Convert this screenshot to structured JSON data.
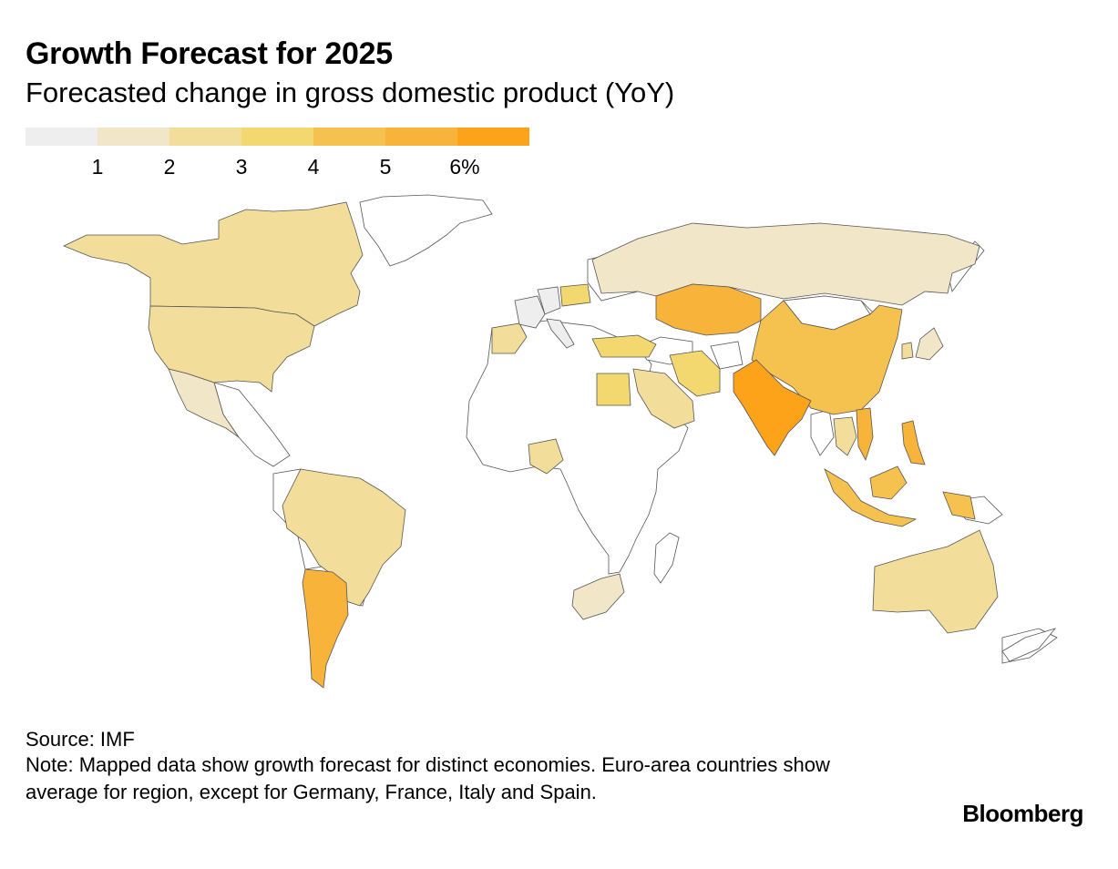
{
  "header": {
    "title": "Growth Forecast for 2025",
    "subtitle": "Forecasted change in gross domestic product (YoY)"
  },
  "legend": {
    "colors": [
      "#eeeeee",
      "#f2e6c8",
      "#f2de9a",
      "#f2d86e",
      "#f6c24f",
      "#f8b33a",
      "#fca31a"
    ],
    "labels": [
      "1",
      "2",
      "3",
      "4",
      "5",
      "6%"
    ]
  },
  "colors": {
    "no_data": "#ffffff",
    "border": "#555555"
  },
  "map": {
    "regions": [
      {
        "name": "Canada",
        "bucket": 2
      },
      {
        "name": "United States",
        "bucket": 2
      },
      {
        "name": "Mexico",
        "bucket": 1
      },
      {
        "name": "Brazil",
        "bucket": 2
      },
      {
        "name": "Argentina",
        "bucket": 5
      },
      {
        "name": "Spain",
        "bucket": 2
      },
      {
        "name": "France",
        "bucket": 0
      },
      {
        "name": "Germany",
        "bucket": 0
      },
      {
        "name": "Italy",
        "bucket": 0
      },
      {
        "name": "Poland",
        "bucket": 3
      },
      {
        "name": "Russia",
        "bucket": 1
      },
      {
        "name": "Kazakhstan",
        "bucket": 5
      },
      {
        "name": "Turkey",
        "bucket": 3
      },
      {
        "name": "Iran",
        "bucket": 3
      },
      {
        "name": "Saudi Arabia",
        "bucket": 2
      },
      {
        "name": "Egypt",
        "bucket": 3
      },
      {
        "name": "Nigeria",
        "bucket": 2
      },
      {
        "name": "South Africa",
        "bucket": 1
      },
      {
        "name": "India",
        "bucket": 6
      },
      {
        "name": "China",
        "bucket": 4
      },
      {
        "name": "Japan",
        "bucket": 1
      },
      {
        "name": "South Korea",
        "bucket": 2
      },
      {
        "name": "Thailand",
        "bucket": 2
      },
      {
        "name": "Vietnam",
        "bucket": 5
      },
      {
        "name": "Philippines",
        "bucket": 5
      },
      {
        "name": "Indonesia",
        "bucket": 4
      },
      {
        "name": "Malaysia",
        "bucket": 4
      },
      {
        "name": "Australia",
        "bucket": 2
      },
      {
        "name": "Mongolia",
        "bucket": 0
      }
    ]
  },
  "footer": {
    "source": "Source: IMF",
    "note": "Note: Mapped data show growth forecast for distinct economies. Euro-area countries show average for region, except for Germany, France, Italy and Spain.",
    "brand": "Bloomberg"
  }
}
